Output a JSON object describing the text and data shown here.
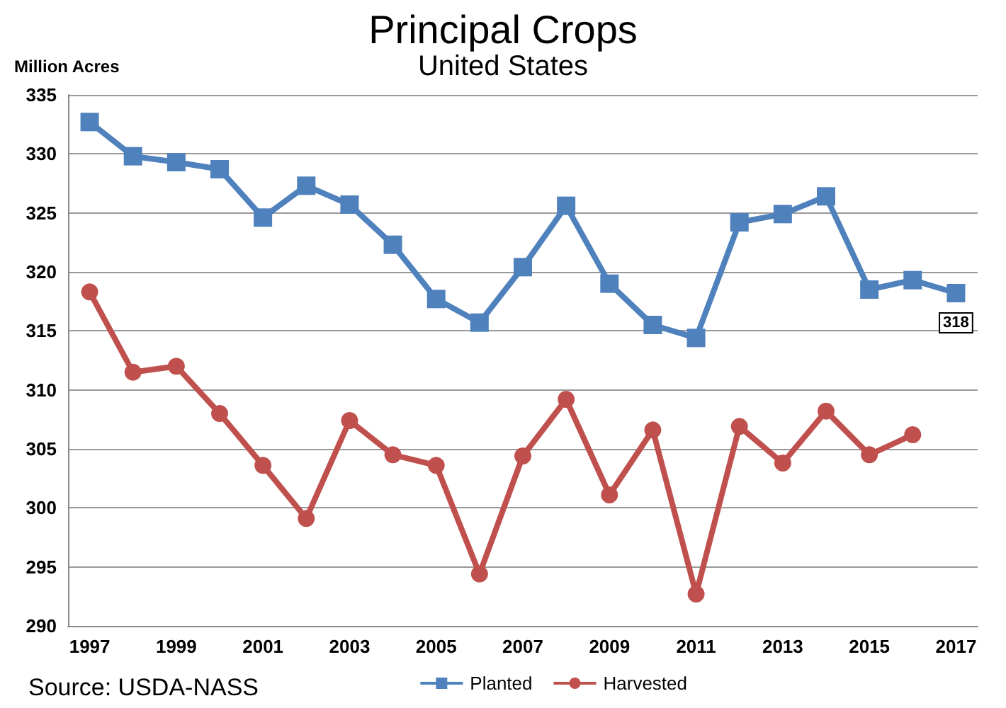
{
  "chart_data": {
    "type": "line",
    "title": "Principal Crops",
    "subtitle": "United States",
    "ylabel": "Million Acres",
    "categories": [
      "1997",
      null,
      "1999",
      null,
      "2001",
      null,
      "2003",
      null,
      "2005",
      null,
      "2007",
      null,
      "2009",
      null,
      "2011",
      null,
      "2013",
      null,
      "2015",
      null,
      "2017"
    ],
    "series": [
      {
        "name": "Planted",
        "color": "#4f81bd",
        "marker": "square",
        "values": [
          332.7,
          329.8,
          329.3,
          328.7,
          324.6,
          327.3,
          325.7,
          322.3,
          317.7,
          315.7,
          320.4,
          325.6,
          319.0,
          315.5,
          314.4,
          324.2,
          324.9,
          326.4,
          318.5,
          319.3,
          318.2
        ],
        "value_labels": [
          null,
          null,
          null,
          null,
          null,
          null,
          null,
          null,
          null,
          null,
          null,
          null,
          null,
          null,
          null,
          null,
          null,
          null,
          null,
          null,
          "318"
        ]
      },
      {
        "name": "Harvested",
        "color": "#c0504d",
        "marker": "circle",
        "values": [
          318.3,
          311.5,
          312.0,
          308.0,
          303.6,
          299.1,
          307.4,
          304.5,
          303.6,
          294.4,
          304.4,
          309.2,
          301.1,
          306.6,
          292.7,
          306.9,
          303.8,
          308.2,
          304.5,
          306.2,
          null
        ]
      }
    ],
    "ylim": [
      290,
      335
    ],
    "yticks": [
      290,
      295,
      300,
      305,
      310,
      315,
      320,
      325,
      330,
      335
    ],
    "grid": "y",
    "legend": "bottom right",
    "line_style": "solid",
    "annotations": [
      "Source: USDA-NASS"
    ]
  }
}
